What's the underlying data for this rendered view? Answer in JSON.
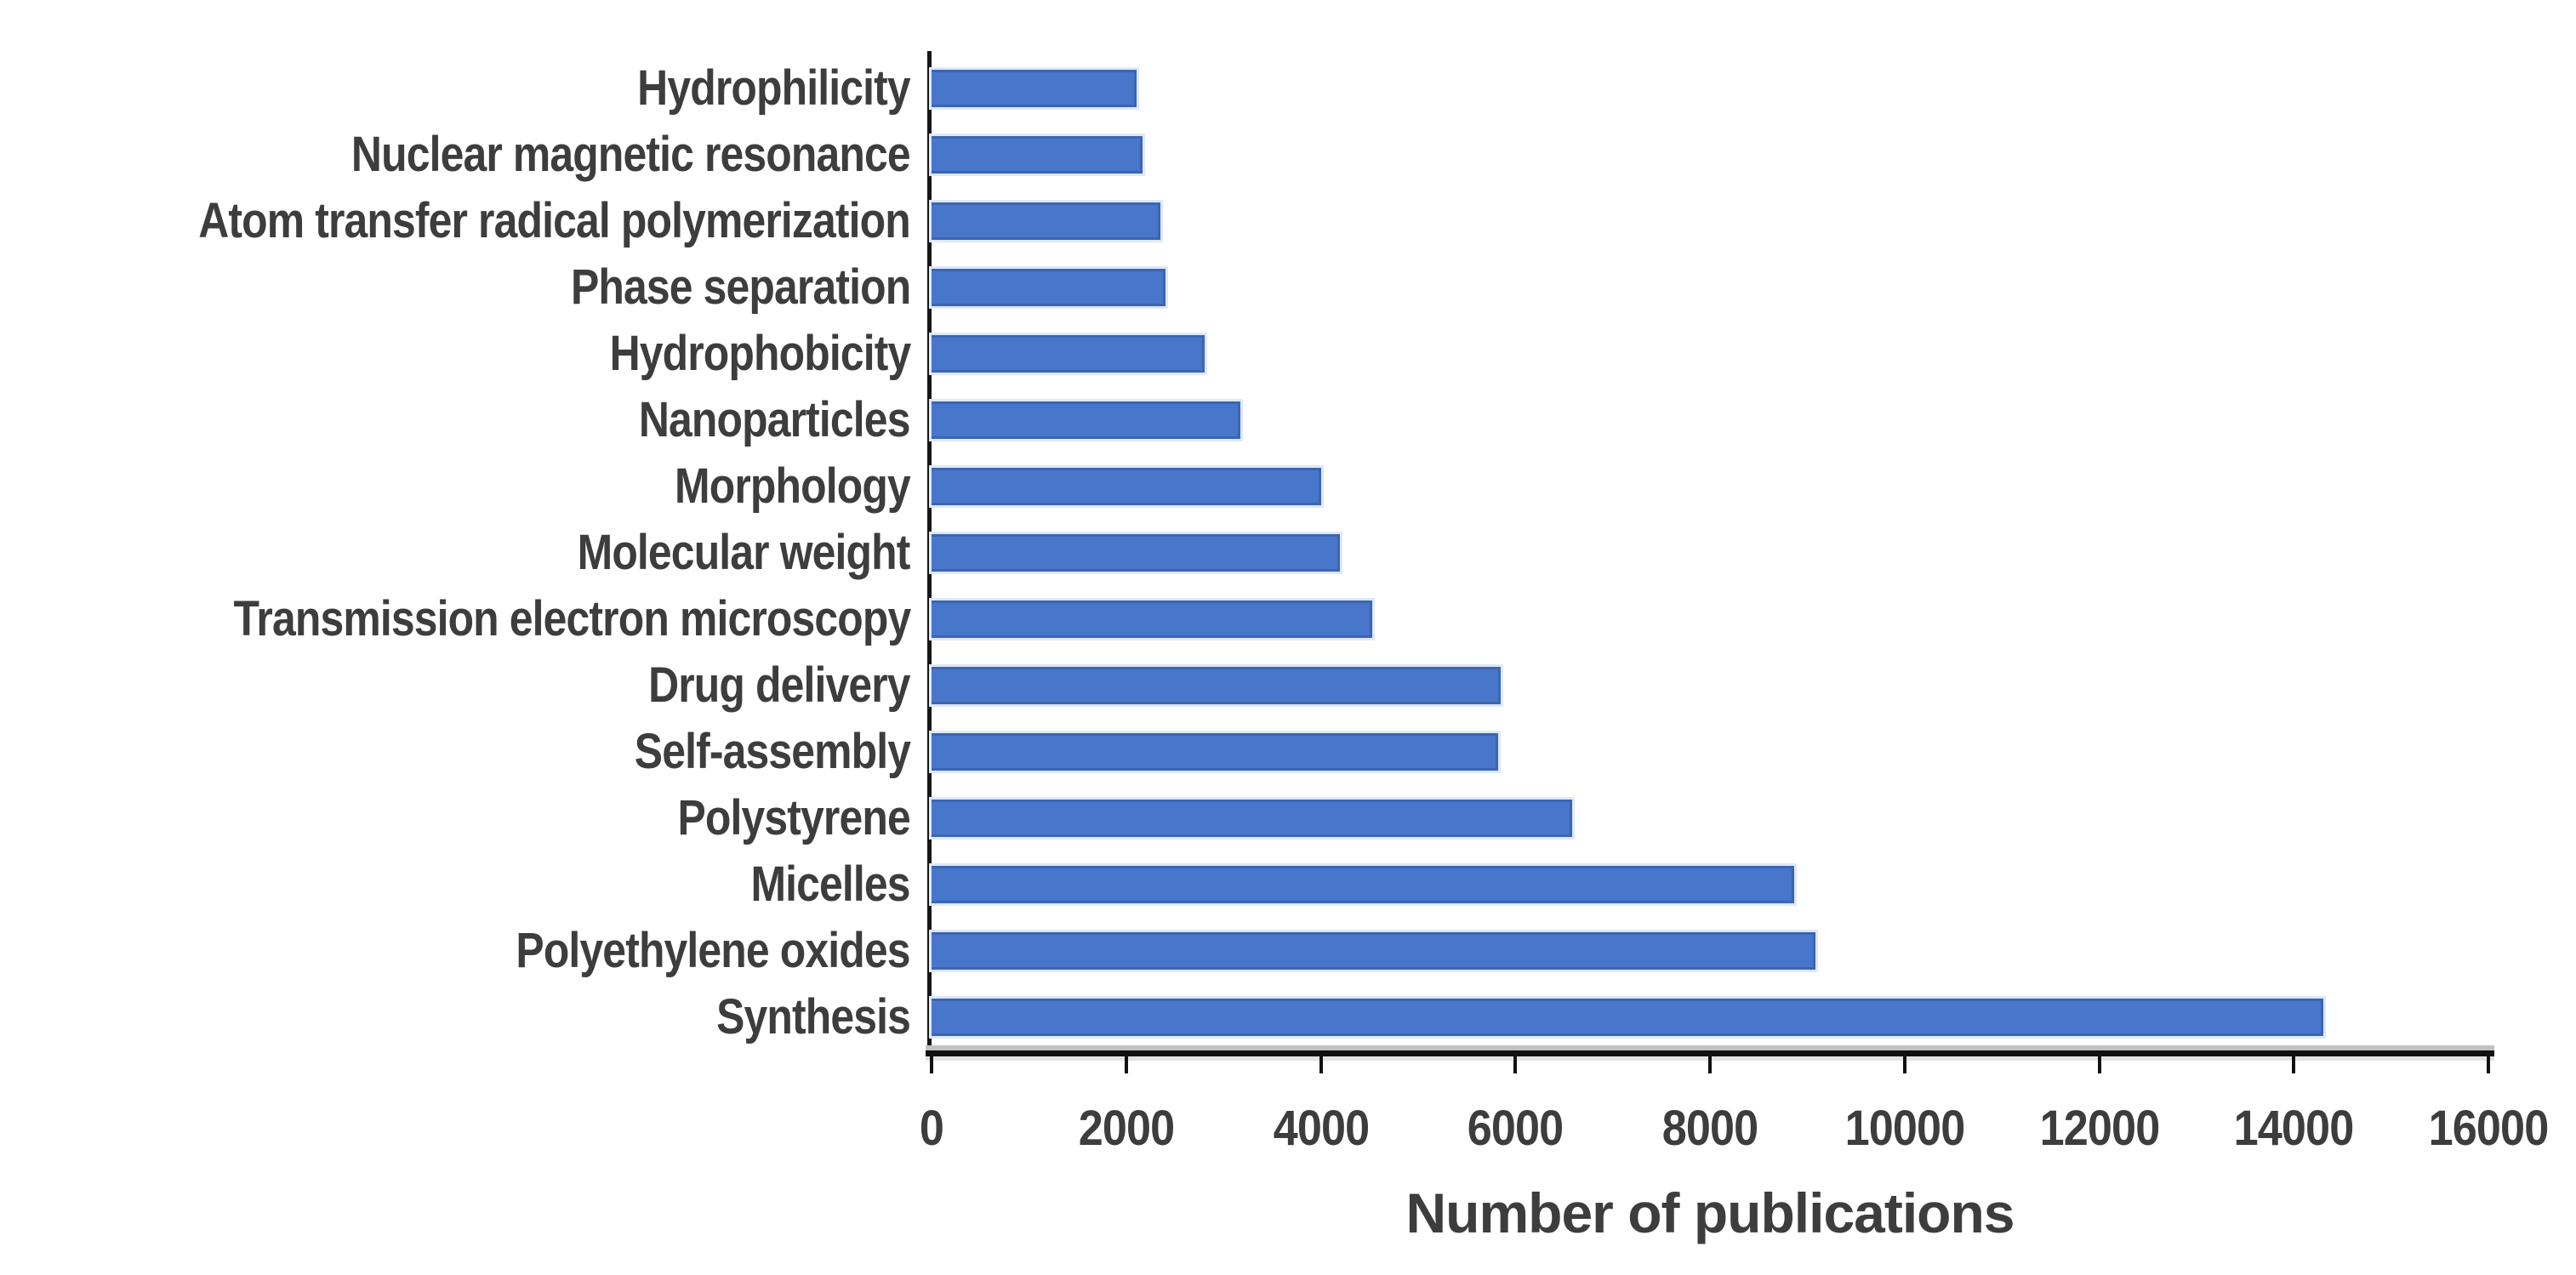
{
  "chart_data": {
    "type": "bar",
    "orientation": "horizontal",
    "title": "",
    "xlabel": "Number of publications",
    "ylabel": "",
    "xlim": [
      0,
      16000
    ],
    "xticks": [
      0,
      2000,
      4000,
      6000,
      8000,
      10000,
      12000,
      14000,
      16000
    ],
    "xtick_labels": [
      "0",
      "2000",
      "4000",
      "6000",
      "8000",
      "10000",
      "12000",
      "14000",
      "16000"
    ],
    "grid": false,
    "legend": null,
    "categories": [
      "Hydrophilicity",
      "Nuclear magnetic resonance",
      "Atom transfer radical polymerization",
      "Phase separation",
      "Hydrophobicity",
      "Nanoparticles",
      "Morphology",
      "Molecular weight",
      "Transmission electron microscopy",
      "Drug delivery",
      "Self-assembly",
      "Polystyrene",
      "Micelles",
      "Polyethylene oxides",
      "Synthesis"
    ],
    "values": [
      2080,
      2140,
      2330,
      2380,
      2780,
      3150,
      3980,
      4170,
      4500,
      5820,
      5800,
      6560,
      8840,
      9060,
      14280
    ],
    "colors": {
      "bar_fill": "#4876CB",
      "bar_edge": "#3A66B2",
      "bar_halo": "#dfe8f7",
      "axis_line": "#111111",
      "text": "#3d3d3d",
      "background": "#ffffff"
    }
  }
}
